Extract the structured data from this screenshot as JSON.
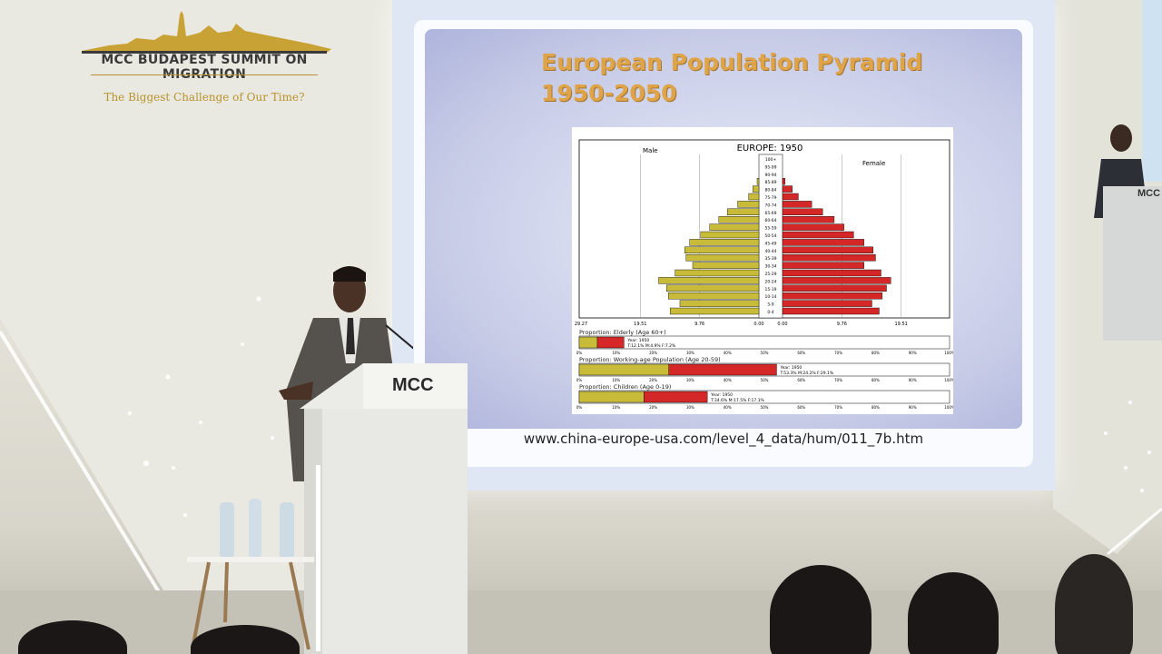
{
  "event": {
    "title": "MCC BUDAPEST SUMMIT ON MIGRATION",
    "subtitle": "The Biggest Challenge of Our Time?"
  },
  "podium": {
    "logo": "MCC"
  },
  "slide": {
    "title_line1": "European Population Pyramid",
    "title_line2": "1950-2050",
    "url": "www.china-europe-usa.com/level_4_data/hum/011_7b.htm"
  },
  "colors": {
    "male_bar": "#c9bb3a",
    "female_bar": "#d42828"
  },
  "chart_data": {
    "type": "bar",
    "title": "EUROPE: 1950",
    "left_label": "Male",
    "right_label": "Female",
    "age_groups": [
      "100+",
      "95-99",
      "90-94",
      "85-89",
      "80-84",
      "75-79",
      "70-74",
      "65-69",
      "60-64",
      "55-59",
      "50-54",
      "45-49",
      "40-44",
      "35-39",
      "30-34",
      "25-29",
      "20-24",
      "15-19",
      "10-14",
      "5-9",
      "0-4"
    ],
    "series": [
      {
        "name": "Male",
        "values": [
          0,
          0,
          0,
          0.3,
          1.0,
          1.7,
          3.5,
          5.2,
          6.6,
          8.1,
          9.6,
          11.4,
          12.2,
          12.0,
          10.9,
          13.8,
          16.5,
          15.2,
          14.9,
          13.0,
          14.6
        ]
      },
      {
        "name": "Female",
        "values": [
          0,
          0,
          0,
          0.4,
          1.6,
          2.6,
          4.8,
          6.6,
          8.5,
          10.1,
          11.7,
          13.4,
          14.9,
          15.3,
          13.4,
          16.2,
          17.8,
          17.1,
          16.4,
          14.7,
          15.9
        ]
      }
    ],
    "x_ticks_left": [
      "29.27",
      "19.51",
      "9.76",
      "0.00"
    ],
    "x_ticks_right": [
      "0.00",
      "9.76",
      "19.51",
      "29.27"
    ],
    "xlim": [
      0,
      29.27
    ],
    "proportions": [
      {
        "label": "Proportion: Elderly (Age 60+)",
        "year": "Year: 1950",
        "detail": "T:12.1%  M:4.9%  F:7.2%",
        "male": 4.9,
        "female": 7.2
      },
      {
        "label": "Proportion: Working-age Population (Age 20-59)",
        "year": "Year: 1950",
        "detail": "T:53.3%  M:24.2%  F:29.1%",
        "male": 24.2,
        "female": 29.1
      },
      {
        "label": "Proportion: Children (Age 0-19)",
        "year": "Year: 1950",
        "detail": "T:34.6%  M:17.5%  F:17.1%",
        "male": 17.5,
        "female": 17.1
      }
    ],
    "pct_ticks": [
      "0%",
      "10%",
      "20%",
      "30%",
      "40%",
      "50%",
      "60%",
      "70%",
      "80%",
      "90%",
      "100%"
    ]
  }
}
